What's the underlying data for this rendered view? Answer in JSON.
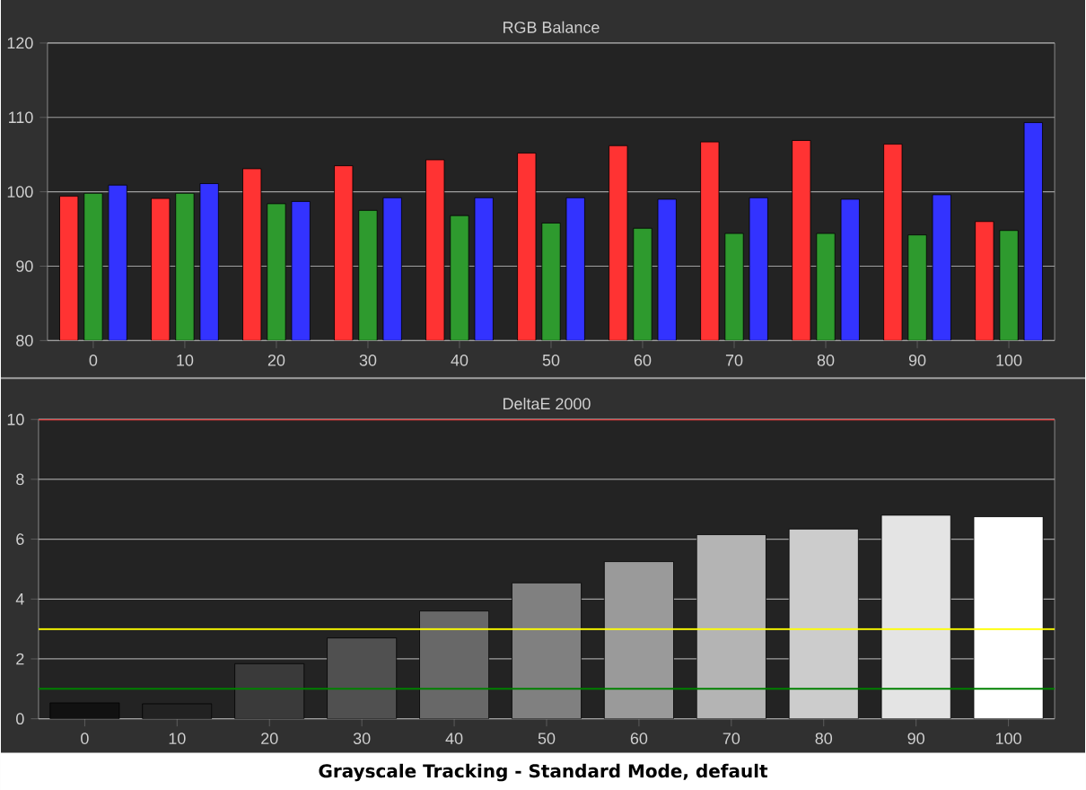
{
  "chart_data": [
    {
      "type": "bar",
      "title": "RGB Balance",
      "categories": [
        "0",
        "10",
        "20",
        "30",
        "40",
        "50",
        "60",
        "70",
        "80",
        "90",
        "100"
      ],
      "series": [
        {
          "color": "#ff3333",
          "values": [
            99.4,
            99.1,
            103.1,
            103.5,
            104.3,
            105.2,
            106.2,
            106.7,
            106.9,
            106.4,
            96.0
          ]
        },
        {
          "color": "#2e9a2e",
          "values": [
            99.8,
            99.8,
            98.4,
            97.5,
            96.8,
            95.8,
            95.1,
            94.4,
            94.4,
            94.2,
            94.8
          ]
        },
        {
          "color": "#3333ff",
          "values": [
            100.9,
            101.1,
            98.7,
            99.2,
            99.2,
            99.2,
            99.0,
            99.2,
            99.0,
            99.6,
            109.3
          ]
        }
      ],
      "ylim": [
        80,
        120
      ],
      "yticks": [
        80,
        90,
        100,
        110,
        120
      ],
      "grid": "y"
    },
    {
      "type": "bar",
      "title": "DeltaE 2000",
      "categories": [
        "0",
        "10",
        "20",
        "30",
        "40",
        "50",
        "60",
        "70",
        "80",
        "90",
        "100"
      ],
      "values": [
        0.53,
        0.5,
        1.84,
        2.7,
        3.6,
        4.54,
        5.25,
        6.15,
        6.34,
        6.8,
        6.75
      ],
      "colors": [
        "#111111",
        "#222222",
        "#3a3a3a",
        "#505050",
        "#686868",
        "#808080",
        "#9a9a9a",
        "#b4b4b4",
        "#cccccc",
        "#e4e4e4",
        "#ffffff"
      ],
      "ylim": [
        0,
        10
      ],
      "yticks": [
        0,
        2,
        4,
        6,
        8,
        10
      ],
      "grid": "y",
      "ref_lines": [
        {
          "axis": "y",
          "value": 10,
          "color": "#ff3333"
        },
        {
          "axis": "y",
          "value": 3,
          "color": "#ffff00"
        },
        {
          "axis": "y",
          "value": 1,
          "color": "#008000"
        }
      ],
      "annotations": [
        "Grayscale Tracking - Standard Mode, default"
      ]
    }
  ]
}
